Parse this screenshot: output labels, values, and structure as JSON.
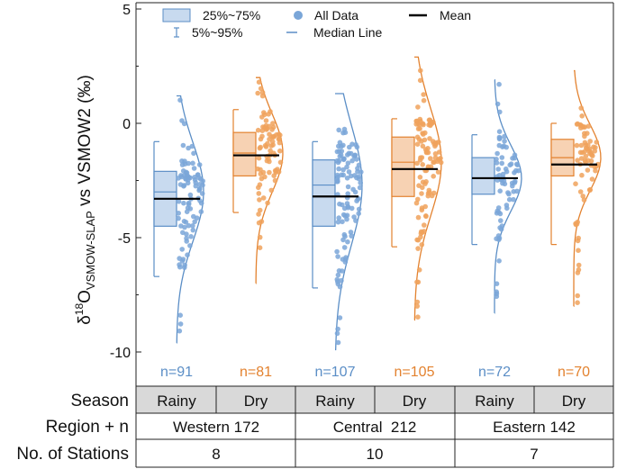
{
  "chart_data": {
    "type": "box",
    "ylabel": {
      "prefix": "δ",
      "sup": "18",
      "main": "O",
      "sub": "VSMOW-SLAP",
      "suffix": " vs VSMOW2 (‰)"
    },
    "ylim": [
      -10.8,
      5
    ],
    "yticks": [
      5,
      0,
      -5,
      -10
    ],
    "yticklabels": [
      "5",
      "0",
      "-5",
      "-10"
    ],
    "legend": {
      "items": [
        {
          "symbol": "box",
          "label": "25%~75%"
        },
        {
          "symbol": "point",
          "label": "All Data"
        },
        {
          "symbol": "mean",
          "label": "Mean"
        },
        {
          "symbol": "whisker",
          "label": "5%~95%"
        },
        {
          "symbol": "median",
          "label": "Median Line"
        }
      ],
      "placement": "top"
    },
    "colors": {
      "rainy_fill": "#c8daef",
      "rainy_line": "#5b8ec6",
      "rainy_point": "#7aa6d8",
      "dry_fill": "#f7d2b3",
      "dry_line": "#e3822f",
      "dry_point": "#f0a25c",
      "mean": "#000000"
    },
    "series": [
      {
        "name": "Western Rainy",
        "season": "Rainy",
        "p5": -6.7,
        "q1": -4.5,
        "median": -3.0,
        "q3": -2.1,
        "p95": -0.8,
        "mean": -3.3,
        "min": -9.6,
        "max": 1.2,
        "n": 91,
        "n_label": "n=91"
      },
      {
        "name": "Western Dry",
        "season": "Dry",
        "p5": -3.9,
        "q1": -2.3,
        "median": -1.3,
        "q3": -0.4,
        "p95": 0.6,
        "mean": -1.4,
        "min": -7.0,
        "max": 2.0,
        "n": 81,
        "n_label": "n=81"
      },
      {
        "name": "Central Rainy",
        "season": "Rainy",
        "p5": -7.2,
        "q1": -4.5,
        "median": -2.7,
        "q3": -1.6,
        "p95": -0.8,
        "mean": -3.2,
        "min": -9.9,
        "max": 1.3,
        "n": 107,
        "n_label": "n=107"
      },
      {
        "name": "Central Dry",
        "season": "Dry",
        "p5": -5.4,
        "q1": -3.2,
        "median": -1.7,
        "q3": -0.6,
        "p95": 0.2,
        "mean": -2.0,
        "min": -8.6,
        "max": 2.9,
        "n": 105,
        "n_label": "n=105"
      },
      {
        "name": "Eastern Rainy",
        "season": "Rainy",
        "p5": -5.3,
        "q1": -3.1,
        "median": -2.4,
        "q3": -1.5,
        "p95": -0.5,
        "mean": -2.4,
        "min": -8.3,
        "max": 1.9,
        "n": 72,
        "n_label": "n=72"
      },
      {
        "name": "Eastern Dry",
        "season": "Dry",
        "p5": -5.3,
        "q1": -2.3,
        "median": -1.5,
        "q3": -0.7,
        "p95": 0.0,
        "mean": -1.8,
        "min": -8.0,
        "max": 2.3,
        "n": 70,
        "n_label": "n=70"
      }
    ]
  },
  "table": {
    "row_labels": [
      "Season",
      "Region + n",
      "No. of Stations"
    ],
    "seasons": [
      "Rainy",
      "Dry",
      "Rainy",
      "Dry",
      "Rainy",
      "Dry"
    ],
    "regions": [
      "Western 172",
      "Central  212",
      "Eastern 142"
    ],
    "stations": [
      "8",
      "10",
      "7"
    ]
  }
}
